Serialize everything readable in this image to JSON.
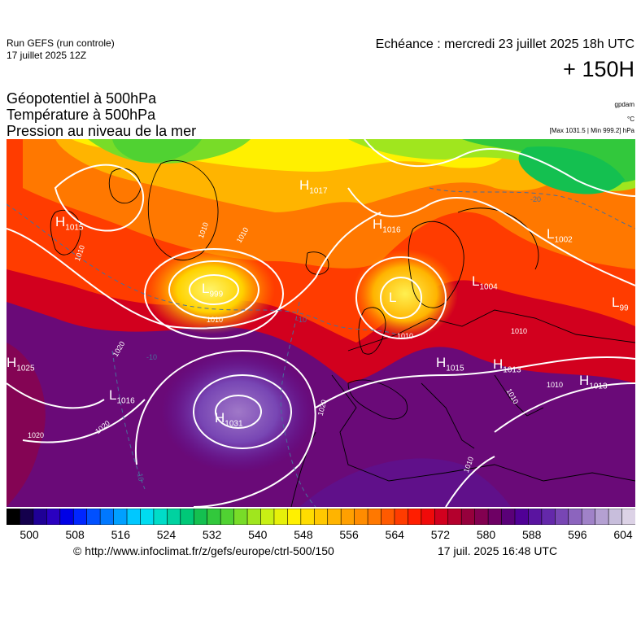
{
  "header": {
    "run_title": "Run GEFS (run controle)",
    "run_date": "17 juillet 2025 12Z",
    "valid_time": "Echéance : mercredi 23 juillet 2025 18h UTC",
    "lead_time": "+ 150H"
  },
  "fields": [
    {
      "label": "Géopotentiel à 500hPa",
      "unit": "gpdam"
    },
    {
      "label": "Température à 500hPa",
      "unit": "°C"
    },
    {
      "label": "Pression au niveau de la mer",
      "unit": "[Max 1031.5 | Min 999.2] hPa"
    }
  ],
  "colors": {
    "background": "#ffffff",
    "contour": "#ffffff",
    "temperature_contour": "#4a6e9a",
    "coastline": "#000000"
  },
  "pressure_centers": [
    {
      "type": "H",
      "value": "1015"
    },
    {
      "type": "L",
      "value": "999"
    },
    {
      "type": "H",
      "value": "1017"
    },
    {
      "type": "H",
      "value": "1016"
    },
    {
      "type": "L",
      "value": "1002"
    },
    {
      "type": "L",
      "value": "1004"
    },
    {
      "type": "L",
      "value": "99"
    },
    {
      "type": "H",
      "value": "1025"
    },
    {
      "type": "L",
      "value": "1016"
    },
    {
      "type": "H",
      "value": "1031"
    },
    {
      "type": "H",
      "value": "1015"
    },
    {
      "type": "H",
      "value": "1013"
    },
    {
      "type": "H",
      "value": "1013"
    },
    {
      "type": "L",
      "value": ""
    }
  ],
  "isobar_labels": [
    "1010",
    "1010",
    "1010",
    "1010",
    "1020",
    "1020",
    "1020",
    "1010",
    "1010",
    "1010",
    "1010",
    "1010",
    "1020"
  ],
  "temperature_labels": [
    "-10",
    "-10",
    "-10",
    "-20"
  ],
  "colorbar": {
    "ticks": [
      "500",
      "508",
      "516",
      "524",
      "532",
      "540",
      "548",
      "556",
      "564",
      "572",
      "580",
      "588",
      "596",
      "604"
    ],
    "colors": [
      "#000000",
      "#14004c",
      "#1f0096",
      "#2a00c0",
      "#0000e6",
      "#0026ff",
      "#0050ff",
      "#0078ff",
      "#00a0ff",
      "#00c8ff",
      "#00dcf0",
      "#00dcc8",
      "#00d2a0",
      "#00c878",
      "#14c050",
      "#32c83c",
      "#50d232",
      "#78dc28",
      "#a0e61e",
      "#c8f014",
      "#e6f00a",
      "#fff000",
      "#ffdc00",
      "#ffc800",
      "#ffb400",
      "#ffa000",
      "#ff8c00",
      "#ff7800",
      "#ff5a00",
      "#ff3c00",
      "#ff1e00",
      "#f00a0a",
      "#d2001e",
      "#b4002d",
      "#96003c",
      "#820050",
      "#6e0064",
      "#5a0078",
      "#500096",
      "#5a14a0",
      "#6428aa",
      "#7846b4",
      "#8c64be",
      "#a082c8",
      "#b4a0d2",
      "#c8bedc",
      "#dcd2e6"
    ]
  },
  "footer": {
    "copyright": "© http://www.infoclimat.fr/z/gefs/europe/ctrl-500/150",
    "timestamp": "17 juil. 2025 16:48 UTC"
  }
}
